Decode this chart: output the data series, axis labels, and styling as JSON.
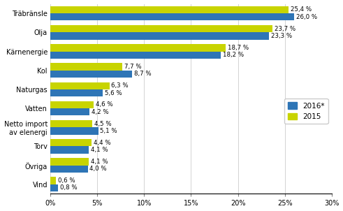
{
  "categories": [
    "Träbränsle",
    "Olja",
    "Kärnenergie",
    "Kol",
    "Naturgas",
    "Vatten",
    "Netto import\nav elenergi",
    "Torv",
    "Övriga",
    "Vind"
  ],
  "values_2016": [
    26.0,
    23.3,
    18.2,
    8.7,
    5.6,
    4.2,
    5.1,
    4.1,
    4.0,
    0.8
  ],
  "values_2015": [
    25.4,
    23.7,
    18.7,
    7.7,
    6.3,
    4.6,
    4.5,
    4.4,
    4.1,
    0.6
  ],
  "labels_2016": [
    "26,0 %",
    "23,3 %",
    "18,2 %",
    "8,7 %",
    "5,6 %",
    "4,2 %",
    "5,1 %",
    "4,1 %",
    "4,0 %",
    "0,8 %"
  ],
  "labels_2015": [
    "25,4 %",
    "23,7 %",
    "18,7 %",
    "7,7 %",
    "6,3 %",
    "4,6 %",
    "4,5 %",
    "4,4 %",
    "4,1 %",
    "0,6 %"
  ],
  "color_2016": "#2e75b6",
  "color_2015": "#c8d400",
  "legend_2016": "2016*",
  "legend_2015": "2015",
  "xlim": [
    0,
    30
  ],
  "xticks": [
    0,
    5,
    10,
    15,
    20,
    25,
    30
  ],
  "xticklabels": [
    "0%",
    "5%",
    "10%",
    "15%",
    "20%",
    "25%",
    "30%"
  ],
  "bar_height": 0.38,
  "label_fontsize": 6.2,
  "tick_fontsize": 7.0,
  "legend_fontsize": 7.5
}
